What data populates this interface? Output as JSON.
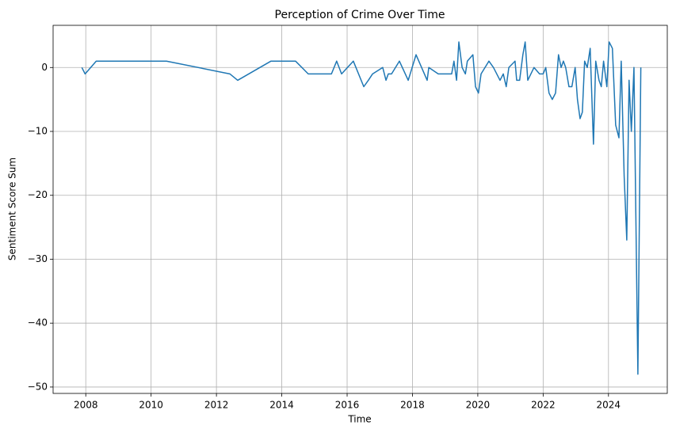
{
  "chart_data": {
    "type": "line",
    "title": "Perception of Crime Over Time",
    "x_label": "Time",
    "y_label": "Sentiment Score Sum",
    "x": [
      2007.88,
      2007.98,
      2008.32,
      2010.47,
      2012.41,
      2012.65,
      2013.67,
      2014.42,
      2014.81,
      2015.52,
      2015.68,
      2015.83,
      2016.19,
      2016.51,
      2016.65,
      2016.78,
      2017.09,
      2017.19,
      2017.26,
      2017.36,
      2017.6,
      2017.87,
      2018.11,
      2018.45,
      2018.5,
      2018.79,
      2019.2,
      2019.27,
      2019.35,
      2019.42,
      2019.52,
      2019.62,
      2019.68,
      2019.85,
      2019.93,
      2020.02,
      2020.1,
      2020.34,
      2020.48,
      2020.68,
      2020.78,
      2020.87,
      2020.95,
      2021.14,
      2021.19,
      2021.28,
      2021.38,
      2021.45,
      2021.53,
      2021.72,
      2021.89,
      2022.0,
      2022.08,
      2022.18,
      2022.28,
      2022.38,
      2022.47,
      2022.55,
      2022.62,
      2022.69,
      2022.79,
      2022.88,
      2022.98,
      2023.05,
      2023.13,
      2023.2,
      2023.27,
      2023.35,
      2023.44,
      2023.54,
      2023.61,
      2023.71,
      2023.78,
      2023.85,
      2023.95,
      2024.02,
      2024.12,
      2024.22,
      2024.32,
      2024.39,
      2024.48,
      2024.56,
      2024.63,
      2024.7,
      2024.78,
      2024.9,
      2024.99
    ],
    "series": [
      {
        "name": "Sentiment Score Sum",
        "color": "#1f77b4",
        "values": [
          0,
          -1,
          1,
          1,
          -1,
          -2,
          1,
          1,
          -1,
          -1,
          1,
          -1,
          1,
          -3,
          -2,
          -1,
          0,
          -2,
          -1,
          -1,
          1,
          -2,
          2,
          -2,
          0,
          -1,
          -1,
          1,
          -2,
          4,
          0,
          -1,
          1,
          2,
          -3,
          -4,
          -1,
          1,
          0,
          -2,
          -1,
          -3,
          0,
          1,
          -2,
          -2,
          2,
          4,
          -2,
          0,
          -1,
          -1,
          0,
          -4,
          -5,
          -4,
          2,
          0,
          1,
          0,
          -3,
          -3,
          0,
          -5,
          -8,
          -7,
          1,
          0,
          3,
          -12,
          1,
          -2,
          -3,
          1,
          -3,
          4,
          3,
          -9,
          -11,
          1,
          -17,
          -27,
          -2,
          -10,
          0,
          -48,
          0
        ]
      }
    ],
    "xlim": [
      2007.0,
      2025.8
    ],
    "ylim": [
      -51.0,
      6.6
    ],
    "xticks": [
      2008,
      2010,
      2012,
      2014,
      2016,
      2018,
      2020,
      2022,
      2024
    ],
    "yticks": [
      0,
      {
        "value": -10,
        "label": "−10"
      },
      {
        "value": -20,
        "label": "−20"
      },
      {
        "value": -30,
        "label": "−30"
      },
      {
        "value": -40,
        "label": "−40"
      },
      {
        "value": -50,
        "label": "−50"
      }
    ],
    "grid": true
  }
}
